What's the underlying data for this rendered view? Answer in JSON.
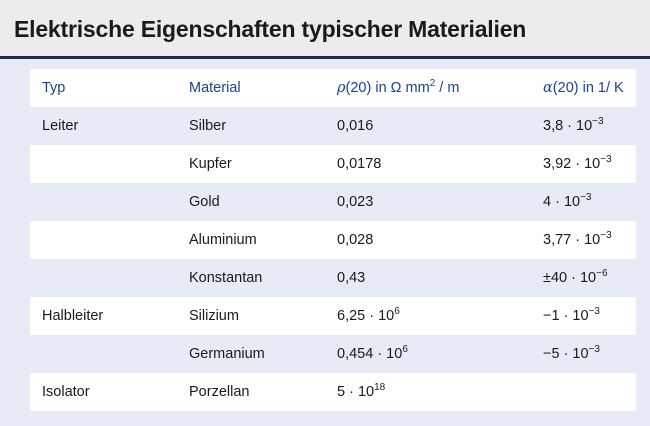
{
  "title": "Elektrische Eigenschaften typischer Materialien",
  "headers": {
    "typ": "Typ",
    "material": "Material",
    "rho_sym": "ρ",
    "rho_rest": "(20) in Ω mm",
    "rho_exp": "2",
    "rho_unit": "/ m",
    "alpha_sym": "α",
    "alpha_rest": "(20) in  1/ K"
  },
  "rows": [
    {
      "typ": "Leiter",
      "material": "Silber",
      "rho": "0,016",
      "rho_exp": "",
      "alpha": "3,8 · 10",
      "alpha_exp": "−3"
    },
    {
      "typ": "",
      "material": "Kupfer",
      "rho": "0,0178",
      "rho_exp": "",
      "alpha": "3,92 · 10",
      "alpha_exp": "−3"
    },
    {
      "typ": "",
      "material": "Gold",
      "rho": "0,023",
      "rho_exp": "",
      "alpha": "4 · 10",
      "alpha_exp": "−3"
    },
    {
      "typ": "",
      "material": "Aluminium",
      "rho": "0,028",
      "rho_exp": "",
      "alpha": "3,77 · 10",
      "alpha_exp": "−3"
    },
    {
      "typ": "",
      "material": "Konstantan",
      "rho": "0,43",
      "rho_exp": "",
      "alpha": "±40 · 10",
      "alpha_exp": "−6"
    },
    {
      "typ": "Halbleiter",
      "material": "Silizium",
      "rho": "6,25 · 10",
      "rho_exp": "6",
      "alpha": "−1 · 10",
      "alpha_exp": "−3"
    },
    {
      "typ": "",
      "material": "Germanium",
      "rho": "0,454 · 10",
      "rho_exp": "6",
      "alpha": "−5 · 10",
      "alpha_exp": "−3"
    },
    {
      "typ": "Isolator",
      "material": "Porzellan",
      "rho": "5 · 10",
      "rho_exp": "18",
      "alpha": "",
      "alpha_exp": ""
    }
  ]
}
